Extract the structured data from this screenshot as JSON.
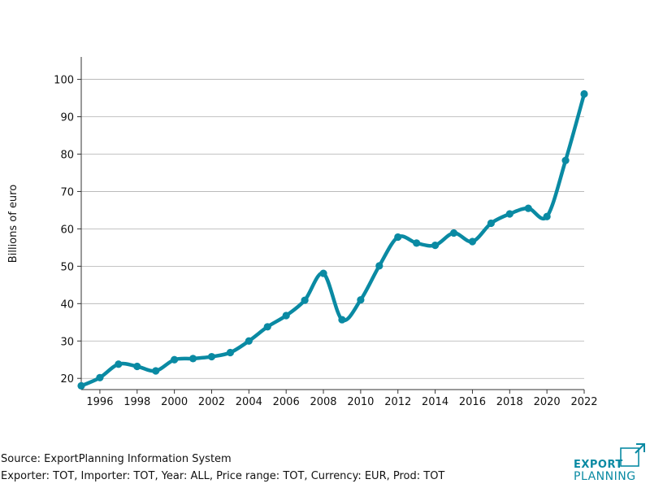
{
  "chart_data": {
    "type": "line",
    "ylabel": "Billions of euro",
    "xlim": [
      1995,
      2022
    ],
    "ylim": [
      17,
      106
    ],
    "yticks": [
      20,
      30,
      40,
      50,
      60,
      70,
      80,
      90,
      100
    ],
    "xticks": [
      1996,
      1998,
      2000,
      2002,
      2004,
      2006,
      2008,
      2010,
      2012,
      2014,
      2016,
      2018,
      2020,
      2022
    ],
    "grid": "horizontal",
    "x": [
      1995,
      1996,
      1997,
      1998,
      1999,
      2000,
      2001,
      2002,
      2003,
      2004,
      2005,
      2006,
      2007,
      2008,
      2009,
      2010,
      2011,
      2012,
      2013,
      2014,
      2015,
      2016,
      2017,
      2018,
      2019,
      2020,
      2021,
      2022
    ],
    "series": [
      {
        "values": [
          18.0,
          20.2,
          23.8,
          23.2,
          22.0,
          25.0,
          25.3,
          25.8,
          26.9,
          30.0,
          33.8,
          36.8,
          40.9,
          48.1,
          35.7,
          41.0,
          50.1,
          57.8,
          56.2,
          55.6,
          58.9,
          56.6,
          61.5,
          64.0,
          65.5,
          63.3,
          78.3,
          96.1
        ]
      }
    ],
    "colors": {
      "line": "#0a8aa3",
      "grid": "#b0b0b0",
      "axis": "#333333"
    }
  },
  "footer": {
    "source": "Source: ExportPlanning Information System",
    "filters": "Exporter: TOT, Importer: TOT, Year: ALL, Price range: TOT, Currency: EUR, Prod: TOT"
  },
  "logo": {
    "line1": "EXPORT",
    "line2": "PLANNING",
    "color": "#0a8aa3"
  }
}
